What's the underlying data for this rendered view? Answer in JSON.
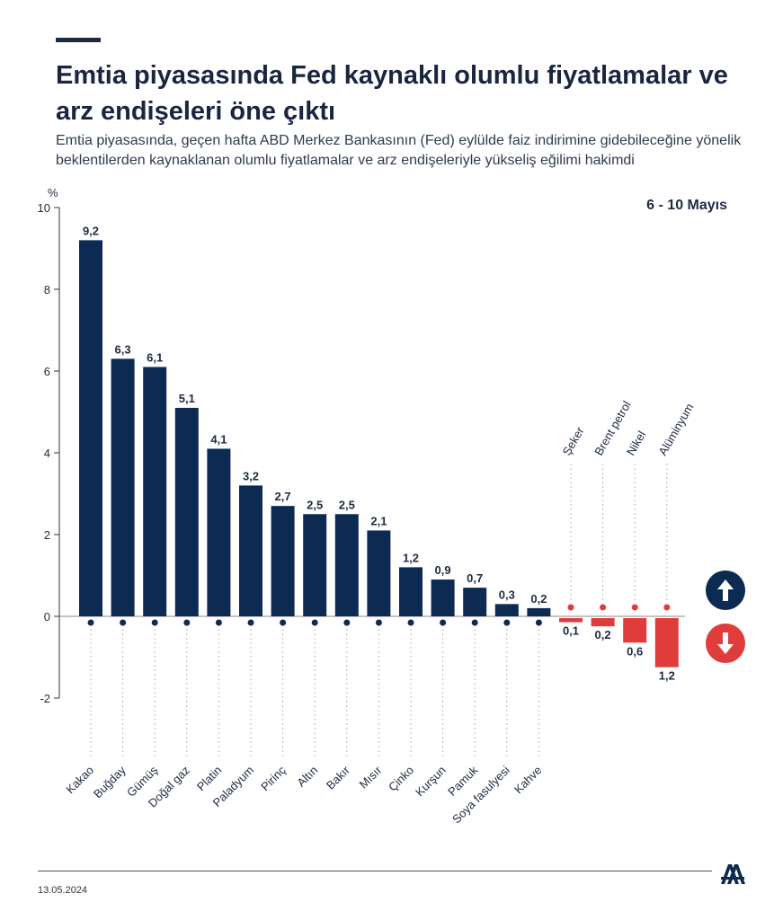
{
  "header": {
    "title": "Emtia piyasasında Fed kaynaklı olumlu fiyatlamalar ve arz endişeleri öne çıktı",
    "subtitle": "Emtia piyasasında, geçen hafta ABD Merkez Bankasının (Fed) eylülde faiz indirimine gidebileceğine yönelik beklentilerden kaynaklanan olumlu fiyatlamalar ve arz endişeleriyle yükseliş eğilimi hakimdi"
  },
  "period_label": "6 - 10 Mayıs",
  "footer": {
    "date": "13.05.2024"
  },
  "logo": {
    "text": "AA"
  },
  "colors": {
    "positive": "#0d2a52",
    "negative": "#e03c3c",
    "text": "#1d2a44"
  },
  "chart_data": {
    "type": "bar",
    "ylabel": "%",
    "ylim": [
      -2,
      10
    ],
    "yticks": [
      -2,
      0,
      2,
      4,
      6,
      8,
      10
    ],
    "grid": false,
    "categories": [
      "Kakao",
      "Buğday",
      "Gümüş",
      "Doğal gaz",
      "Platin",
      "Paladyum",
      "Pirinç",
      "Altın",
      "Bakır",
      "Mısır",
      "Çinko",
      "Kurşun",
      "Pamuk",
      "Soya fasulyesi",
      "Kahve",
      "Şeker",
      "Brent petrol",
      "Nikel",
      "Alüminyum"
    ],
    "values": [
      9.2,
      6.3,
      6.1,
      5.1,
      4.1,
      3.2,
      2.7,
      2.5,
      2.5,
      2.1,
      1.2,
      0.9,
      0.7,
      0.3,
      0.2,
      -0.1,
      -0.2,
      -0.6,
      -1.2
    ],
    "value_labels": [
      "9,2",
      "6,3",
      "6,1",
      "5,1",
      "4,1",
      "3,2",
      "2,7",
      "2,5",
      "2,5",
      "2,1",
      "1,2",
      "0,9",
      "0,7",
      "0,3",
      "0,2",
      "0,1",
      "0,2",
      "0,6",
      "1,2"
    ],
    "icons": [
      "cocoa-icon",
      "wheat-icon",
      "bar-icon",
      "flame-icon",
      "bar-icon",
      "bar-icon",
      "brass-icon",
      "bar-icon",
      "bar-icon",
      "corn-icon",
      "bar-icon",
      "bar-icon",
      "cotton-icon",
      "soybean-icon",
      "coffee-icon",
      "sugar-icon",
      "oil-icon",
      "bar-icon",
      "bar-icon"
    ]
  }
}
